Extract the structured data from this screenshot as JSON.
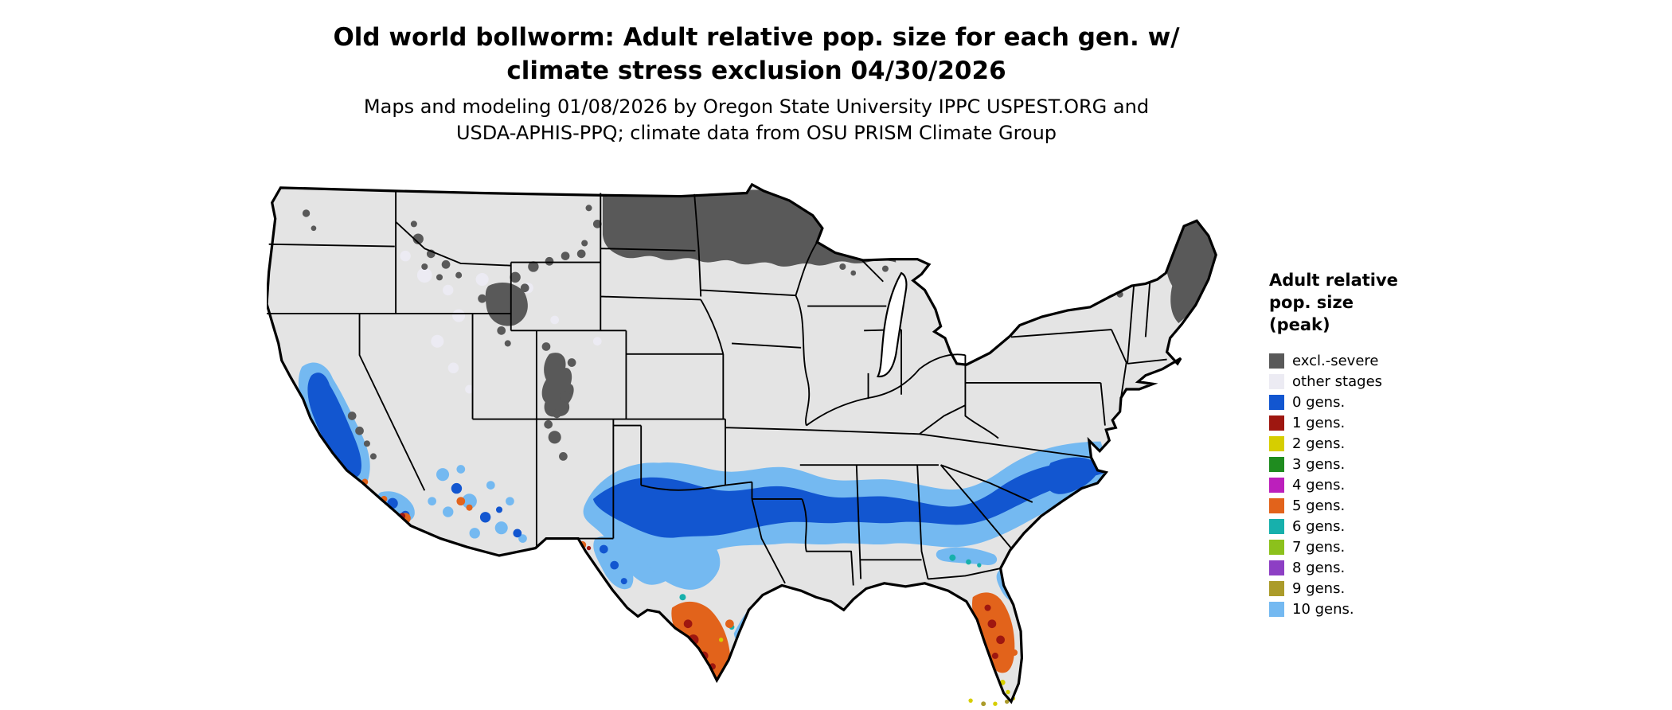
{
  "title": {
    "line1": "Old world bollworm: Adult relative pop. size for each gen. w/",
    "line2": "climate stress exclusion 04/30/2026"
  },
  "subtitle": {
    "line1": "Maps and modeling 01/08/2026 by Oregon State University IPPC USPEST.ORG and",
    "line2": "USDA-APHIS-PPQ; climate data from OSU PRISM Climate Group"
  },
  "legend": {
    "title_lines": [
      "Adult relative",
      "pop. size",
      "(peak)"
    ],
    "items": [
      {
        "label": "excl.-severe",
        "color": "#595959"
      },
      {
        "label": "other stages",
        "color": "#ecebf3"
      },
      {
        "label": "0 gens.",
        "color": "#1256d0"
      },
      {
        "label": "1 gens.",
        "color": "#9e1710"
      },
      {
        "label": "2 gens.",
        "color": "#d6ce00"
      },
      {
        "label": "3 gens.",
        "color": "#1f8c1f"
      },
      {
        "label": "4 gens.",
        "color": "#bc1fbc"
      },
      {
        "label": "5 gens.",
        "color": "#e2631b"
      },
      {
        "label": "6 gens.",
        "color": "#17b0ac"
      },
      {
        "label": "7 gens.",
        "color": "#8cc11c"
      },
      {
        "label": "8 gens.",
        "color": "#8d3fc4"
      },
      {
        "label": "9 gens.",
        "color": "#ab9b2a"
      },
      {
        "label": "10 gens.",
        "color": "#74b9f1"
      }
    ]
  },
  "colors": {
    "background": "#ffffff",
    "map_base": "#e4e4e4",
    "border": "#000000",
    "water": "#ffffff",
    "excl_severe": "#595959",
    "other_stages": "#ecebf3",
    "gen0": "#1256d0",
    "gen1": "#9e1710",
    "gen2": "#d6ce00",
    "gen5": "#e2631b",
    "gen6": "#17b0ac",
    "gen9": "#ab9b2a",
    "gen10": "#74b9f1"
  },
  "map": {
    "area": "Contiguous United States",
    "visible_patterns": {
      "excl_severe": "northern North Dakota and Minnesota, Maine, northern Rockies, Black Hills, Colorado Rockies, small northern New England patch",
      "gen0_blue": "southern band from Texas across the Gulf states to the Carolina coast; California Central Valley; scattered Arizona",
      "gen10_light_blue": "fringe surrounding the southern blue band and south-central Texas",
      "gen5_orange": "southern tip of Texas; central Florida peninsula",
      "gen1_red": "speckles inside the south Texas and central Florida orange zones",
      "gen2_yellow": "small specks near the Florida Keys"
    }
  }
}
